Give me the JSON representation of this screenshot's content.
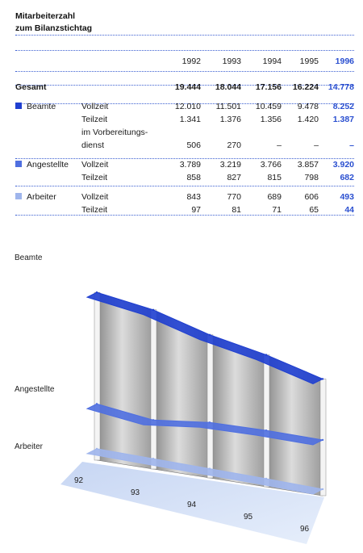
{
  "table": {
    "title_lines": [
      "Mitarbeiterzahl",
      "zum Bilanzstichtag"
    ],
    "years": [
      "1992",
      "1993",
      "1994",
      "1995",
      "1996"
    ],
    "rows": [
      {
        "category": "Gesamt",
        "sub": "",
        "values": [
          "19.444",
          "18.044",
          "17.156",
          "16.224",
          "14.778"
        ]
      },
      {
        "category": "Beamte",
        "sub": "Vollzeit",
        "values": [
          "12.010",
          "11.501",
          "10.459",
          "9.478",
          "8.252"
        ]
      },
      {
        "category": "",
        "sub": "Teilzeit",
        "values": [
          "1.341",
          "1.376",
          "1.356",
          "1.420",
          "1.387"
        ]
      },
      {
        "category": "",
        "sub": "im Vorbereitungs-",
        "values": [
          "",
          "",
          "",
          "",
          ""
        ]
      },
      {
        "category": "",
        "sub": "dienst",
        "values": [
          "506",
          "270",
          "–",
          "–",
          "–"
        ]
      },
      {
        "category": "Angestellte",
        "sub": "Vollzeit",
        "values": [
          "3.789",
          "3.219",
          "3.766",
          "3.857",
          "3.920"
        ]
      },
      {
        "category": "",
        "sub": "Teilzeit",
        "values": [
          "858",
          "827",
          "815",
          "798",
          "682"
        ]
      },
      {
        "category": "Arbeiter",
        "sub": "Vollzeit",
        "values": [
          "843",
          "770",
          "689",
          "606",
          "493"
        ]
      },
      {
        "category": "",
        "sub": "Teilzeit",
        "values": [
          "97",
          "81",
          "71",
          "65",
          "44"
        ]
      }
    ]
  },
  "colors": {
    "beamte": "#1f3fd0",
    "angestellte": "#4f6fe0",
    "arbeiter": "#9fb5ec",
    "highlight": "#2a4fd0"
  },
  "chart_data": {
    "type": "area",
    "x": [
      "92",
      "93",
      "94",
      "95",
      "96"
    ],
    "series": [
      {
        "name": "Beamte",
        "values": [
          13857,
          13147,
          11815,
          10898,
          9639
        ]
      },
      {
        "name": "Angestellte",
        "values": [
          4647,
          4046,
          4581,
          4655,
          4602
        ]
      },
      {
        "name": "Arbeiter",
        "values": [
          940,
          851,
          760,
          671,
          537
        ]
      }
    ],
    "stacked": false,
    "three_d": true,
    "legend": "left"
  }
}
